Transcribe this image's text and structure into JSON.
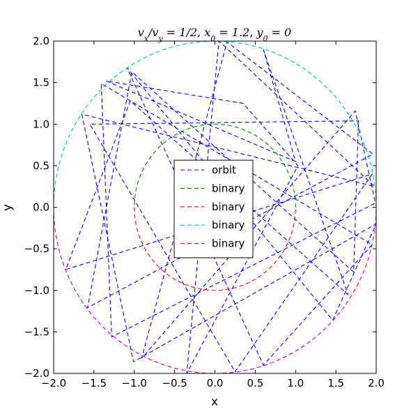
{
  "chart_data": {
    "type": "line",
    "title": "v_x/v_y = 1/2, x_0 = 1.2, y_0 = 0",
    "xlabel": "x",
    "ylabel": "y",
    "xlim": [
      -2.0,
      2.0
    ],
    "ylim": [
      -2.0,
      2.0
    ],
    "xticks": [
      "−2.0",
      "−1.5",
      "−1.0",
      "−0.5",
      "0.0",
      "0.5",
      "1.0",
      "1.5",
      "2.0"
    ],
    "yticks": [
      "−2.0",
      "−1.5",
      "−1.0",
      "−0.5",
      "0.0",
      "0.5",
      "1.0",
      "1.5",
      "2.0"
    ],
    "grid": false,
    "legend_position": "center",
    "series": [
      {
        "name": "orbit",
        "color": "#0000ff",
        "style": "dashed",
        "x": [
          0.6,
          1.65,
          -1.05,
          -1.85,
          1.95,
          0.25,
          -1.55,
          1.78,
          1.72,
          -1.03,
          -1.58,
          1.96,
          0.15,
          -0.91,
          1.74,
          1.99,
          -1.28,
          -1.41,
          1.95,
          0.6,
          -1.09,
          1.46,
          2.0,
          -1.01,
          -1.65,
          1.98,
          0.05,
          -0.35,
          1.03,
          0.35,
          -1.35,
          1.0,
          0.6
        ],
        "y": [
          1.9,
          -1.05,
          1.28,
          -0.75,
          0.4,
          -1.98,
          1.0,
          1.04,
          -0.78,
          1.63,
          -1.21,
          0.64,
          1.99,
          -1.82,
          1.16,
          0.05,
          -1.56,
          1.49,
          -0.45,
          -1.9,
          1.68,
          -1.36,
          -0.2,
          -1.86,
          1.12,
          0.25,
          2.0,
          -2.0,
          0.5,
          1.25,
          1.52,
          0.55,
          1.9
        ]
      },
      {
        "name": "binary",
        "color": "#008000",
        "style": "dashed",
        "circle": {
          "r": 1.0,
          "from_deg": 0,
          "to_deg": 180
        }
      },
      {
        "name": "binary",
        "color": "#ff0000",
        "style": "dashed",
        "circle": {
          "r": 1.0,
          "from_deg": 180,
          "to_deg": 360
        }
      },
      {
        "name": "binary",
        "color": "#00bfbf",
        "style": "dashed",
        "circle": {
          "r": 2.0,
          "from_deg": 0,
          "to_deg": 180
        }
      },
      {
        "name": "binary",
        "color": "#bf00bf",
        "style": "dashed",
        "circle": {
          "r": 2.0,
          "from_deg": 180,
          "to_deg": 360
        }
      }
    ]
  }
}
